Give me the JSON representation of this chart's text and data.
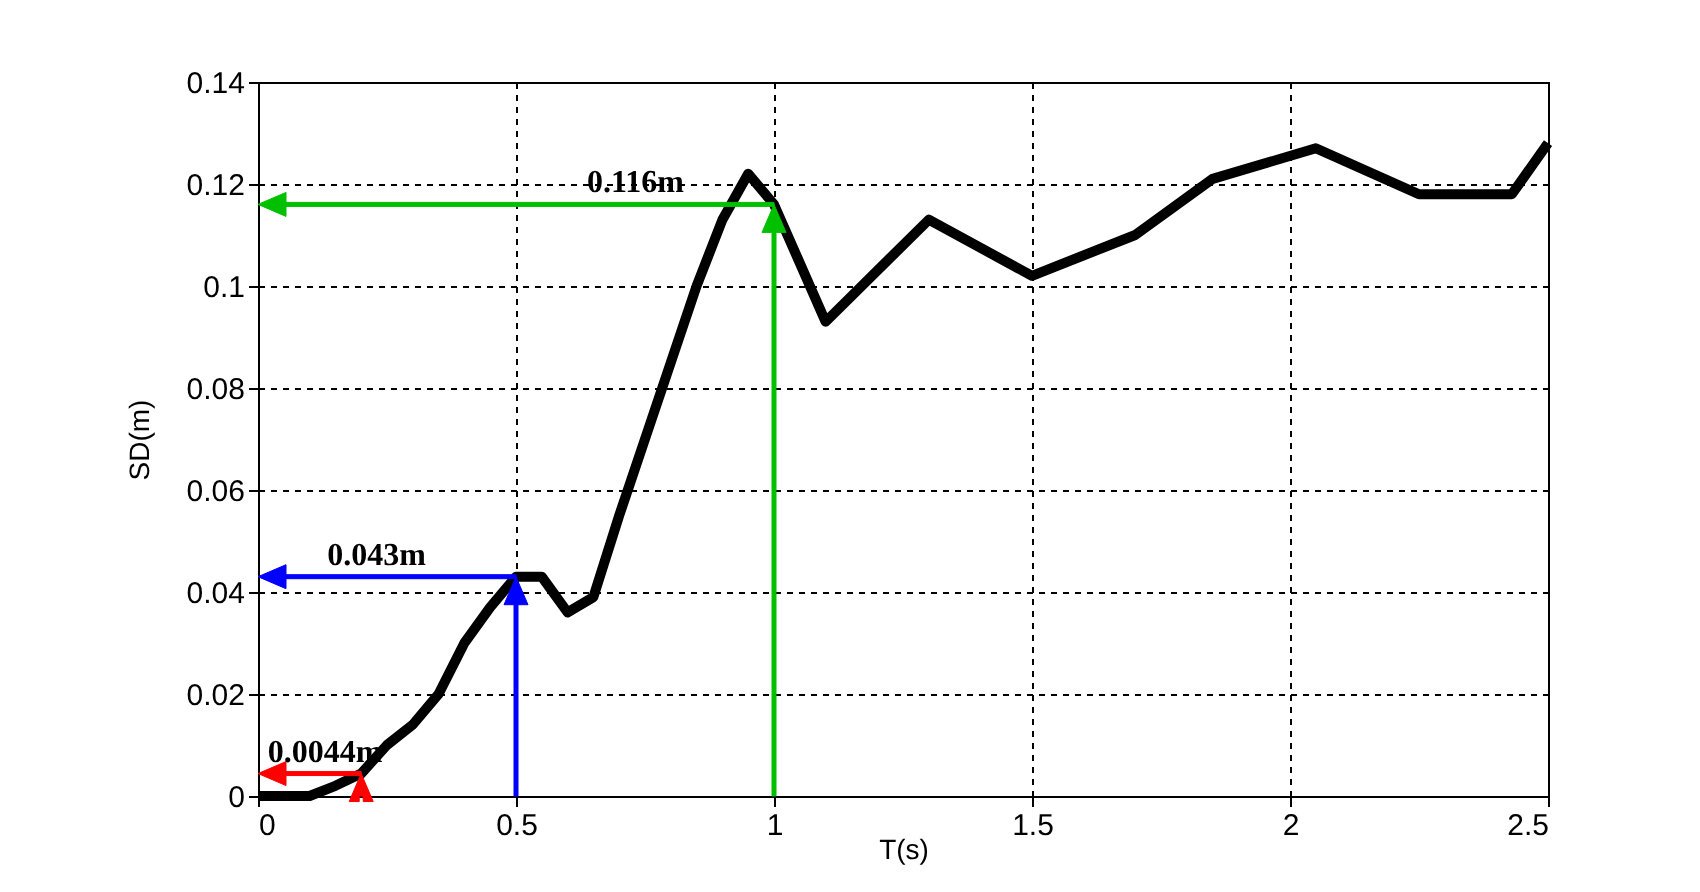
{
  "chart_data": {
    "type": "line",
    "xlabel": "T(s)",
    "ylabel": "SD(m)",
    "x": [
      0,
      0.1,
      0.15,
      0.2,
      0.25,
      0.3,
      0.35,
      0.4,
      0.45,
      0.5,
      0.55,
      0.6,
      0.65,
      0.7,
      0.75,
      0.8,
      0.85,
      0.9,
      0.95,
      1.0,
      1.1,
      1.3,
      1.5,
      1.7,
      1.85,
      2.05,
      2.25,
      2.43,
      2.5
    ],
    "series": [
      {
        "color": "#000000",
        "values": [
          0,
          0,
          0.002,
          0.0044,
          0.01,
          0.014,
          0.02,
          0.03,
          0.037,
          0.043,
          0.043,
          0.036,
          0.039,
          0.055,
          0.07,
          0.085,
          0.1,
          0.113,
          0.122,
          0.116,
          0.093,
          0.113,
          0.102,
          0.11,
          0.121,
          0.127,
          0.118,
          0.118,
          0.128
        ]
      }
    ],
    "xlim": [
      0,
      2.5
    ],
    "xticks": [
      0,
      0.5,
      1,
      1.5,
      2,
      2.5
    ],
    "ylim": [
      0,
      0.14
    ],
    "yticks": [
      0,
      0.02,
      0.04,
      0.06,
      0.08,
      0.1,
      0.12,
      0.14
    ],
    "grid": true,
    "marker": "none",
    "line_style": "solid",
    "annotations": [
      {
        "text": "0.0044m",
        "x": 0.2,
        "y": 0.0044
      },
      {
        "text": "0.043m",
        "x": 0.5,
        "y": 0.043
      },
      {
        "text": "0.116m",
        "x": 1,
        "y": 0.116
      }
    ]
  }
}
